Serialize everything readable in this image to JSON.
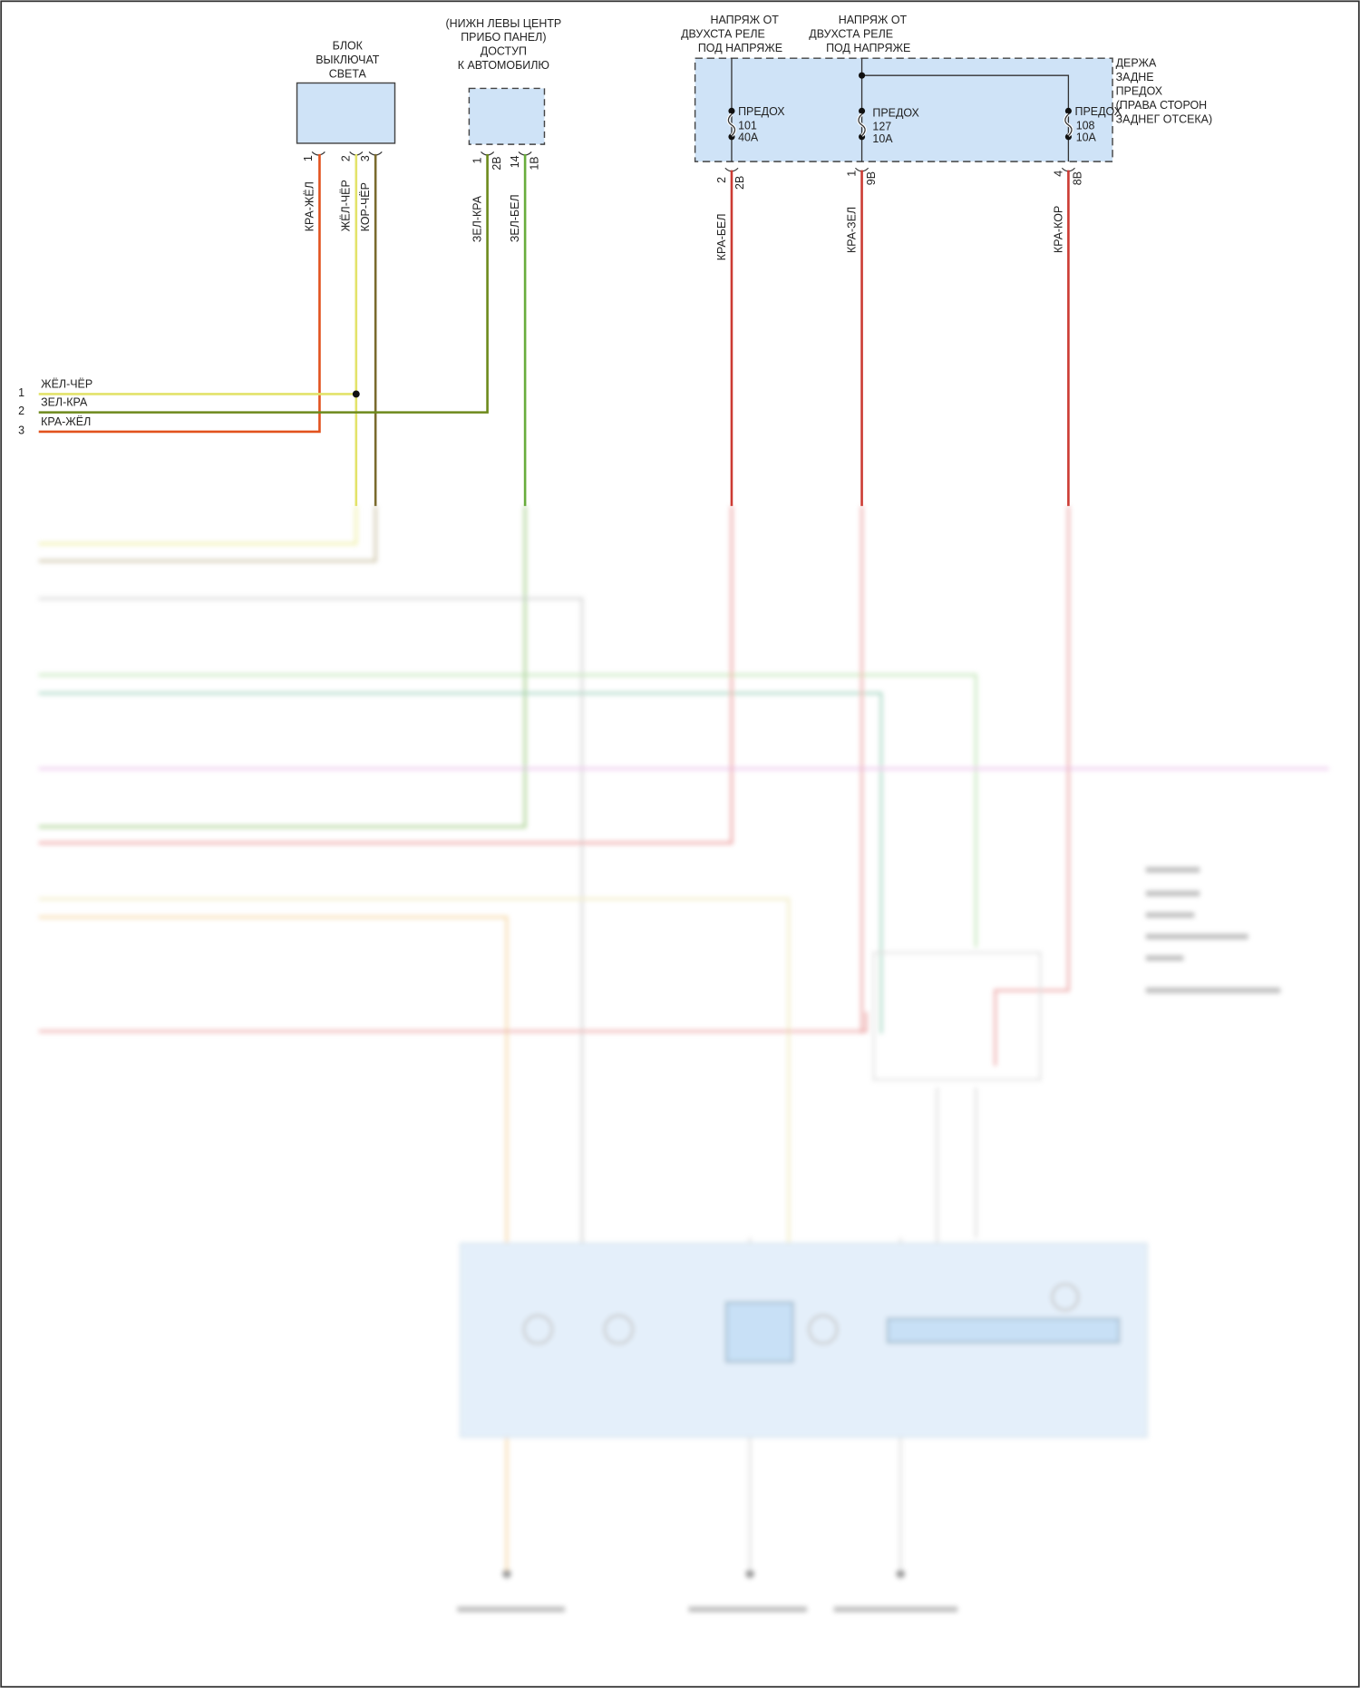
{
  "components": {
    "light_switch": {
      "title_lines": [
        "БЛОК",
        "ВЫКЛЮЧАТ",
        "СВЕТА"
      ],
      "pins": [
        "1",
        "2",
        "3"
      ]
    },
    "access_connector": {
      "title_lines": [
        "(НИЖН ЛЕВЫ ЦЕНТР",
        "ПРИБО ПАНЕЛ)",
        "ДОСТУП",
        "К АВТОМОБИЛЮ"
      ],
      "pins": [
        "1",
        "2B",
        "14",
        "1B"
      ]
    },
    "fuse_box": {
      "title_lines": [
        "ДЕРЖА",
        "ЗАДНЕ",
        "ПРЕДОХ",
        "(ПРАВА СТОРОН",
        "ЗАДНЕГ ОТСЕКА)"
      ],
      "feed_label_1": [
        "НАПРЯЖ ОТ",
        "ДВУХСТА РЕЛЕ",
        "ПОД НАПРЯЖЕ"
      ],
      "feed_label_2": [
        "НАПРЯЖ ОТ",
        "ДВУХСТА РЕЛЕ",
        "ПОД НАПРЯЖЕ"
      ],
      "fuses": [
        {
          "label": "ПРЕДОХ",
          "number": "101",
          "rating": "40A",
          "pin": "2",
          "cavity": "2B"
        },
        {
          "label": "ПРЕДОХ",
          "number": "127",
          "rating": "10A",
          "pin": "1",
          "cavity": "9B"
        },
        {
          "label": "ПРЕДОХ",
          "number": "108",
          "rating": "10A",
          "pin": "4",
          "cavity": "8B"
        }
      ]
    }
  },
  "wires": {
    "switch_pin1": "КРА-ЖЁЛ",
    "switch_pin2": "ЖЁЛ-ЧЁР",
    "switch_pin3": "КОР-ЧЁР",
    "access_pin1": "ЗЕЛ-КРА",
    "access_pin14": "ЗЕЛ-БЕЛ",
    "fuse101": "КРА-БЕЛ",
    "fuse127": "КРА-ЗЕЛ",
    "fuse108": "КРА-КОР"
  },
  "left_connector": [
    {
      "pin": "1",
      "wire": "ЖЁЛ-ЧЁР"
    },
    {
      "pin": "2",
      "wire": "ЗЕЛ-КРА"
    },
    {
      "pin": "3",
      "wire": "КРА-ЖЁЛ"
    }
  ],
  "colors": {
    "red_yellow": "#e2521e",
    "yellow_black": "#e3e36a",
    "brown_black": "#7a6a2e",
    "green_red": "#6d8a1c",
    "green_white": "#69ad3c",
    "red_white": "#cc3b33",
    "component_fill": "#cfe3f7"
  }
}
